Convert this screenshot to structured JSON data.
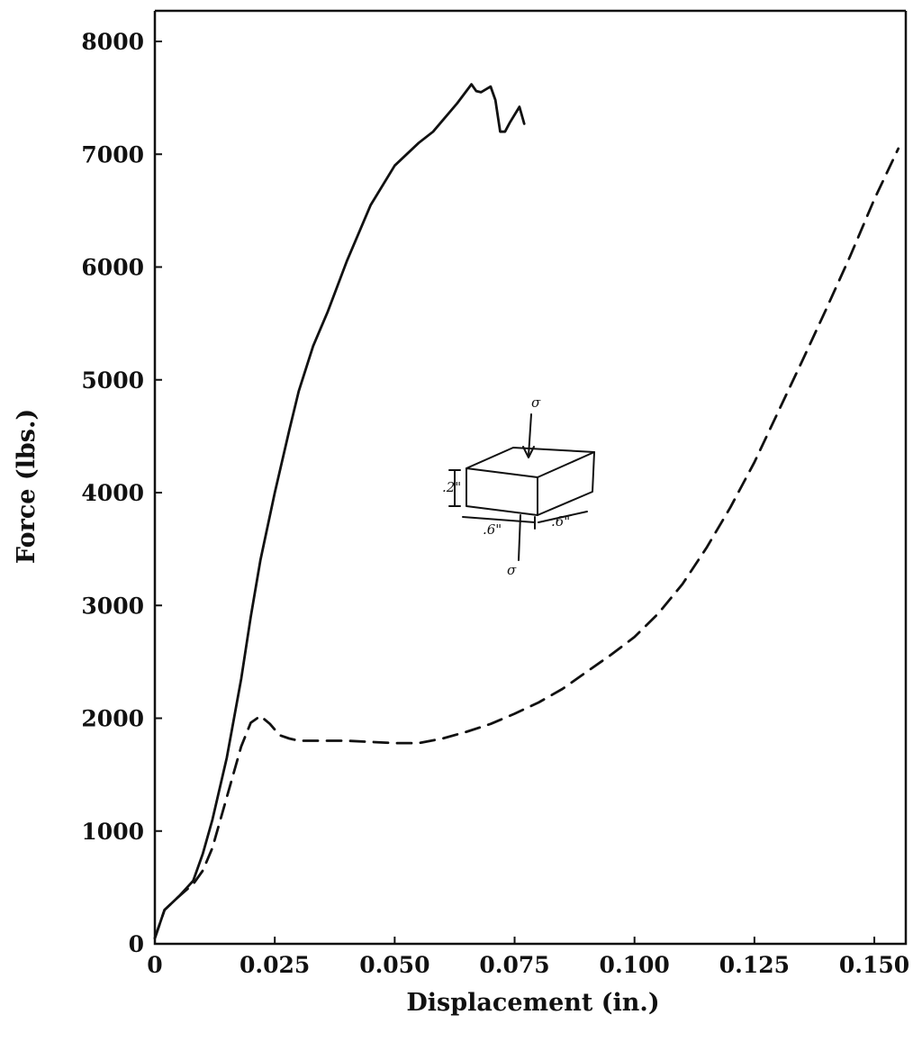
{
  "chart_data": {
    "type": "line",
    "title": "",
    "xlabel": "Displacement (in.)",
    "ylabel": "Force (lbs.)",
    "xlim": [
      0,
      0.165
    ],
    "ylim": [
      0,
      8300
    ],
    "xticks": [
      0,
      0.025,
      0.05,
      0.075,
      0.1,
      0.125,
      0.15
    ],
    "xtick_labels": [
      "0",
      "0.025",
      "0.050",
      "0.075",
      "0.100",
      "0.125",
      "0.150"
    ],
    "yticks": [
      0,
      1000,
      2000,
      3000,
      4000,
      5000,
      6000,
      7000,
      8000
    ],
    "ytick_labels": [
      "0",
      "1000",
      "2000",
      "3000",
      "4000",
      "5000",
      "6000",
      "7000",
      "8000"
    ],
    "grid": false,
    "legend": "none",
    "series": [
      {
        "style": "solid",
        "color": "#111111",
        "x": [
          0,
          0.002,
          0.005,
          0.008,
          0.01,
          0.012,
          0.015,
          0.018,
          0.02,
          0.022,
          0.025,
          0.028,
          0.03,
          0.033,
          0.036,
          0.04,
          0.045,
          0.05,
          0.055,
          0.058,
          0.06,
          0.063,
          0.066,
          0.067,
          0.068,
          0.07,
          0.071,
          0.072,
          0.073,
          0.074,
          0.076,
          0.077
        ],
        "y": [
          50,
          300,
          420,
          560,
          800,
          1100,
          1650,
          2350,
          2900,
          3400,
          4000,
          4550,
          4900,
          5300,
          5600,
          6050,
          6550,
          6900,
          7100,
          7200,
          7300,
          7450,
          7620,
          7560,
          7550,
          7600,
          7480,
          7200,
          7200,
          7280,
          7420,
          7270
        ]
      },
      {
        "style": "dashed",
        "color": "#111111",
        "x": [
          0,
          0.002,
          0.005,
          0.008,
          0.01,
          0.012,
          0.015,
          0.018,
          0.02,
          0.022,
          0.024,
          0.026,
          0.028,
          0.03,
          0.035,
          0.04,
          0.045,
          0.05,
          0.055,
          0.06,
          0.065,
          0.07,
          0.075,
          0.08,
          0.085,
          0.09,
          0.095,
          0.1,
          0.105,
          0.11,
          0.115,
          0.12,
          0.125,
          0.13,
          0.135,
          0.14,
          0.145,
          0.15,
          0.155
        ],
        "y": [
          50,
          300,
          420,
          530,
          650,
          850,
          1300,
          1750,
          1960,
          2020,
          1950,
          1850,
          1820,
          1800,
          1800,
          1800,
          1790,
          1780,
          1780,
          1820,
          1880,
          1950,
          2040,
          2140,
          2260,
          2410,
          2560,
          2720,
          2930,
          3190,
          3510,
          3870,
          4270,
          4720,
          5170,
          5630,
          6100,
          6600,
          7050
        ]
      }
    ]
  },
  "sketch": {
    "load_label": "σ",
    "height_label": ".2\"",
    "width_label": ".6\"",
    "depth_label": ".6\""
  }
}
